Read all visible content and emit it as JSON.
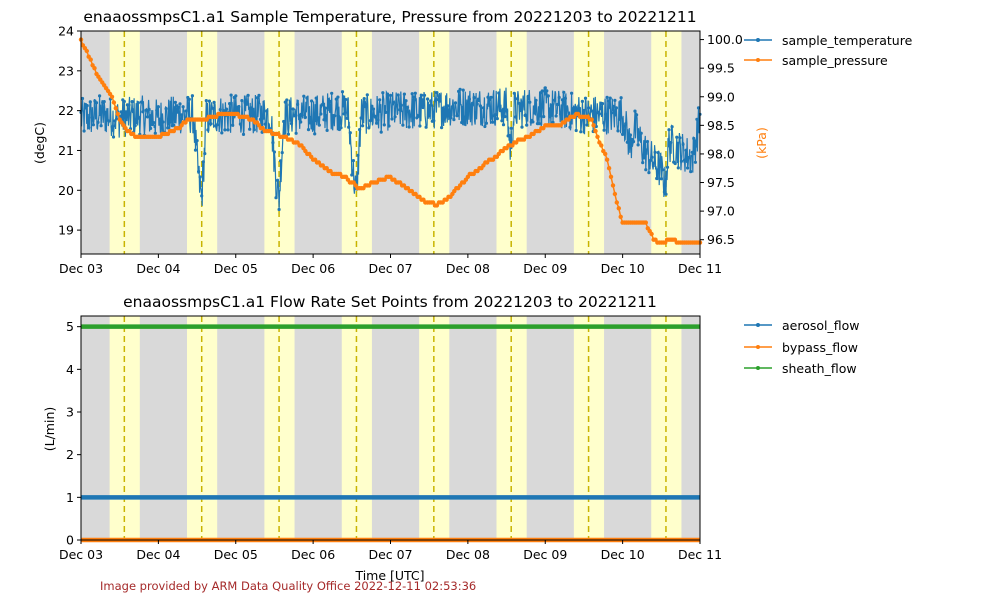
{
  "footer": "Image provided by ARM Data Quality Office 2022-12-11 02:53:36",
  "colors": {
    "temperature": "#1f77b4",
    "pressure": "#ff7f0e",
    "aerosol": "#1f77b4",
    "bypass": "#ff7f0e",
    "sheath": "#2ca02c",
    "night_shade": "#d9d9d9",
    "day_shade": "#ffffcc",
    "noon_line": "#c8b400"
  },
  "chart_data": [
    {
      "type": "line",
      "title": "enaaossmpsC1.a1 Sample Temperature, Pressure from 20221203 to 20221211",
      "xlabel": "",
      "ylabel": "(degC)",
      "ylabel_right": "(kPa)",
      "xlim": [
        0,
        8
      ],
      "xtick_labels": [
        "Dec 03",
        "Dec 04",
        "Dec 05",
        "Dec 06",
        "Dec 07",
        "Dec 08",
        "Dec 09",
        "Dec 10",
        "Dec 11"
      ],
      "ylim": [
        18.4,
        24.0
      ],
      "yticks": [
        19,
        20,
        21,
        22,
        23,
        24
      ],
      "ylim_right": [
        96.25,
        100.15
      ],
      "yticks_right": [
        96.5,
        97.0,
        97.5,
        98.0,
        98.5,
        99.0,
        99.5,
        100.0
      ],
      "ytick_labels_right": [
        "96.5",
        "97.0",
        "97.5",
        "98.0",
        "98.5",
        "99.0",
        "99.5",
        "100.0"
      ],
      "legend_position": "outside-right",
      "day_shading": {
        "day_start": [
          0.37,
          1.37,
          2.37,
          3.37,
          4.37,
          5.37,
          6.37,
          7.37
        ],
        "day_end": [
          0.76,
          1.76,
          2.76,
          3.76,
          4.76,
          5.76,
          6.76,
          7.76
        ],
        "solar_noon": [
          0.56,
          1.56,
          2.56,
          3.56,
          4.56,
          5.56,
          6.56,
          7.56
        ]
      },
      "series": [
        {
          "name": "sample_temperature",
          "axis": "left",
          "x": [
            0.0,
            0.25,
            0.5,
            0.75,
            1.0,
            1.25,
            1.45,
            1.52,
            1.56,
            1.62,
            1.75,
            2.0,
            2.25,
            2.45,
            2.52,
            2.56,
            2.62,
            2.75,
            3.0,
            3.25,
            3.45,
            3.52,
            3.56,
            3.62,
            3.75,
            4.0,
            4.25,
            4.5,
            4.75,
            5.0,
            5.25,
            5.5,
            5.55,
            5.6,
            5.75,
            6.0,
            6.25,
            6.5,
            6.75,
            7.0,
            7.1,
            7.15,
            7.25,
            7.4,
            7.5,
            7.55,
            7.6,
            7.75,
            7.9,
            8.0
          ],
          "y": [
            21.8,
            21.9,
            21.8,
            21.9,
            21.8,
            21.9,
            21.9,
            20.3,
            19.8,
            21.8,
            21.9,
            21.9,
            21.9,
            21.9,
            20.3,
            19.8,
            21.8,
            21.9,
            21.9,
            22.0,
            22.0,
            20.4,
            19.9,
            21.9,
            21.9,
            22.0,
            22.0,
            22.0,
            22.1,
            22.1,
            22.1,
            22.1,
            21.0,
            22.0,
            22.1,
            22.1,
            22.0,
            21.9,
            21.9,
            21.9,
            21.1,
            21.6,
            21.1,
            20.7,
            20.5,
            20.1,
            21.2,
            21.0,
            20.8,
            21.8
          ]
        },
        {
          "name": "sample_pressure",
          "axis": "right",
          "x": [
            0.0,
            0.1,
            0.2,
            0.3,
            0.4,
            0.5,
            0.6,
            0.7,
            0.8,
            1.0,
            1.2,
            1.4,
            1.6,
            1.8,
            2.0,
            2.2,
            2.4,
            2.6,
            2.8,
            3.0,
            3.2,
            3.4,
            3.6,
            3.8,
            4.0,
            4.2,
            4.4,
            4.6,
            4.8,
            5.0,
            5.2,
            5.4,
            5.6,
            5.8,
            6.0,
            6.2,
            6.4,
            6.6,
            6.7,
            6.8,
            6.9,
            7.0,
            7.1,
            7.3,
            7.4,
            7.5,
            7.6,
            7.8,
            8.0
          ],
          "y": [
            100.0,
            99.7,
            99.4,
            99.2,
            99.0,
            98.6,
            98.4,
            98.3,
            98.3,
            98.3,
            98.4,
            98.6,
            98.6,
            98.7,
            98.7,
            98.6,
            98.4,
            98.3,
            98.2,
            97.9,
            97.7,
            97.6,
            97.4,
            97.5,
            97.6,
            97.4,
            97.2,
            97.1,
            97.3,
            97.6,
            97.8,
            98.0,
            98.2,
            98.3,
            98.5,
            98.5,
            98.7,
            98.6,
            98.2,
            97.9,
            97.3,
            96.8,
            96.8,
            96.8,
            96.5,
            96.45,
            96.5,
            96.45,
            96.45
          ]
        }
      ]
    },
    {
      "type": "line",
      "title": "enaaossmpsC1.a1 Flow Rate Set Points from 20221203 to 20221211",
      "xlabel": "Time [UTC]",
      "ylabel": "(L/min)",
      "xlim": [
        0,
        8
      ],
      "xtick_labels": [
        "Dec 03",
        "Dec 04",
        "Dec 05",
        "Dec 06",
        "Dec 07",
        "Dec 08",
        "Dec 09",
        "Dec 10",
        "Dec 11"
      ],
      "ylim": [
        0,
        5.25
      ],
      "yticks": [
        0,
        1,
        2,
        3,
        4,
        5
      ],
      "legend_position": "outside-right",
      "series": [
        {
          "name": "aerosol_flow",
          "x": [
            0,
            8
          ],
          "y": [
            1.0,
            1.0
          ]
        },
        {
          "name": "bypass_flow",
          "x": [
            0,
            8
          ],
          "y": [
            0.0,
            0.0
          ]
        },
        {
          "name": "sheath_flow",
          "x": [
            0,
            8
          ],
          "y": [
            5.0,
            5.0
          ]
        }
      ]
    }
  ]
}
